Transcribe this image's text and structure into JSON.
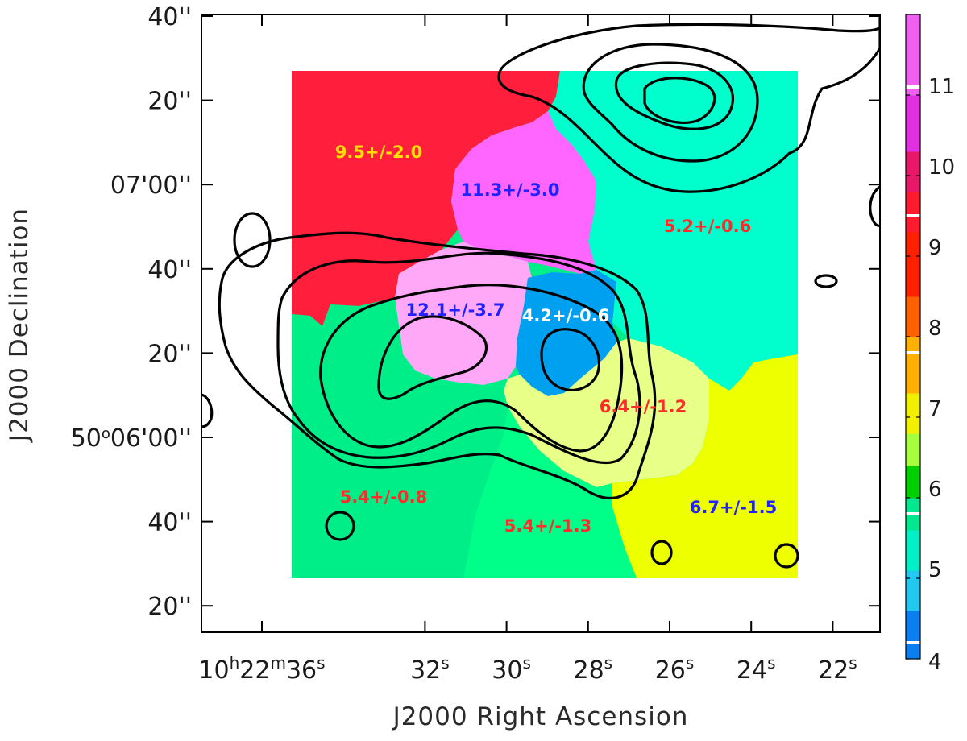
{
  "chart_data": {
    "type": "heatmap",
    "xlabel": "J2000 Right Ascension",
    "ylabel": "J2000 Declination",
    "x_ticks": [
      {
        "main": "10",
        "unit_h": "h",
        "mid": "22",
        "unit_m": "m",
        "sec": "36",
        "unit_s": "s",
        "ra_sec": 36
      },
      {
        "main": "32",
        "unit_s": "s",
        "ra_sec": 32
      },
      {
        "main": "30",
        "unit_s": "s",
        "ra_sec": 30
      },
      {
        "main": "28",
        "unit_s": "s",
        "ra_sec": 28
      },
      {
        "main": "26",
        "unit_s": "s",
        "ra_sec": 26
      },
      {
        "main": "24",
        "unit_s": "s",
        "ra_sec": 24
      },
      {
        "main": "22",
        "unit_s": "s",
        "ra_sec": 22
      }
    ],
    "y_ticks": [
      {
        "label": "40''",
        "dec_arcsec": 100
      },
      {
        "label": "20''",
        "dec_arcsec": 80
      },
      {
        "label": "07'00''",
        "dec_arcsec": 60
      },
      {
        "label": "40''",
        "dec_arcsec": 40
      },
      {
        "label": "20''",
        "dec_arcsec": 20
      },
      {
        "label_deg": "50",
        "label_rest": "06'00''",
        "dec_arcsec": 0
      },
      {
        "label": "40''",
        "dec_arcsec": -20
      },
      {
        "label": "20''",
        "dec_arcsec": -40
      }
    ],
    "colorbar": {
      "range": [
        4,
        12
      ],
      "tick_labels": [
        "4",
        "5",
        "6",
        "7",
        "8",
        "9",
        "10",
        "11"
      ],
      "tick_values": [
        4,
        5,
        6,
        7,
        8,
        9,
        10,
        11
      ],
      "stops": [
        {
          "v": 4.0,
          "color": "#0a80f0"
        },
        {
          "v": 4.6,
          "color": "#22c8f0"
        },
        {
          "v": 5.1,
          "color": "#00f0c8"
        },
        {
          "v": 5.6,
          "color": "#00e890"
        },
        {
          "v": 6.0,
          "color": "#00d000"
        },
        {
          "v": 6.4,
          "color": "#a8ff40"
        },
        {
          "v": 6.8,
          "color": "#f0f000"
        },
        {
          "v": 7.3,
          "color": "#ffb000"
        },
        {
          "v": 8.0,
          "color": "#ff6000"
        },
        {
          "v": 8.5,
          "color": "#ff2000"
        },
        {
          "v": 9.3,
          "color": "#ff1a30"
        },
        {
          "v": 9.8,
          "color": "#e81868"
        },
        {
          "v": 10.3,
          "color": "#e030e0"
        },
        {
          "v": 11.0,
          "color": "#f060f0"
        },
        {
          "v": 12.0,
          "color": "#f8a8f8"
        }
      ],
      "white_marks": [
        4.2,
        5.8,
        7.8,
        9.5,
        11.1
      ]
    },
    "regions": [
      {
        "name": "north-west",
        "value": 9.5,
        "label": "9.5+/-2.0",
        "fill": "#ff1e3c",
        "label_color": "#ffe000"
      },
      {
        "name": "north-east",
        "value": 5.2,
        "label": "5.2+/-0.6",
        "fill": "#00ffcc",
        "label_color": "#ff2a2a"
      },
      {
        "name": "north-centre",
        "value": 11.3,
        "label": "11.3+/-3.0",
        "fill": "#ff66ff",
        "label_color": "#2222ff"
      },
      {
        "name": "centre-west",
        "value": 12.1,
        "label": "12.1+/-3.7",
        "fill": "#ffa8f8",
        "label_color": "#2222ff"
      },
      {
        "name": "centre",
        "value": 4.2,
        "label": "4.2+/-0.6",
        "fill": "#00a0f0",
        "label_color": "#ffffff"
      },
      {
        "name": "centre-south-east",
        "value": 6.4,
        "label": "6.4+/-1.2",
        "fill": "#e8ff88",
        "label_color": "#ff2a2a"
      },
      {
        "name": "south-west",
        "value": 5.4,
        "label": "5.4+/-0.8",
        "fill": "#00ee88",
        "label_color": "#ff2a2a"
      },
      {
        "name": "south-centre",
        "value": 5.4,
        "label": "5.4+/-1.3",
        "fill": "#00ff88",
        "label_color": "#ff2a2a"
      },
      {
        "name": "south-east",
        "value": 6.7,
        "label": "6.7+/-1.5",
        "fill": "#eeff00",
        "label_color": "#2222ff"
      }
    ],
    "contours": "black radio contours overlaid (4 levels)"
  }
}
